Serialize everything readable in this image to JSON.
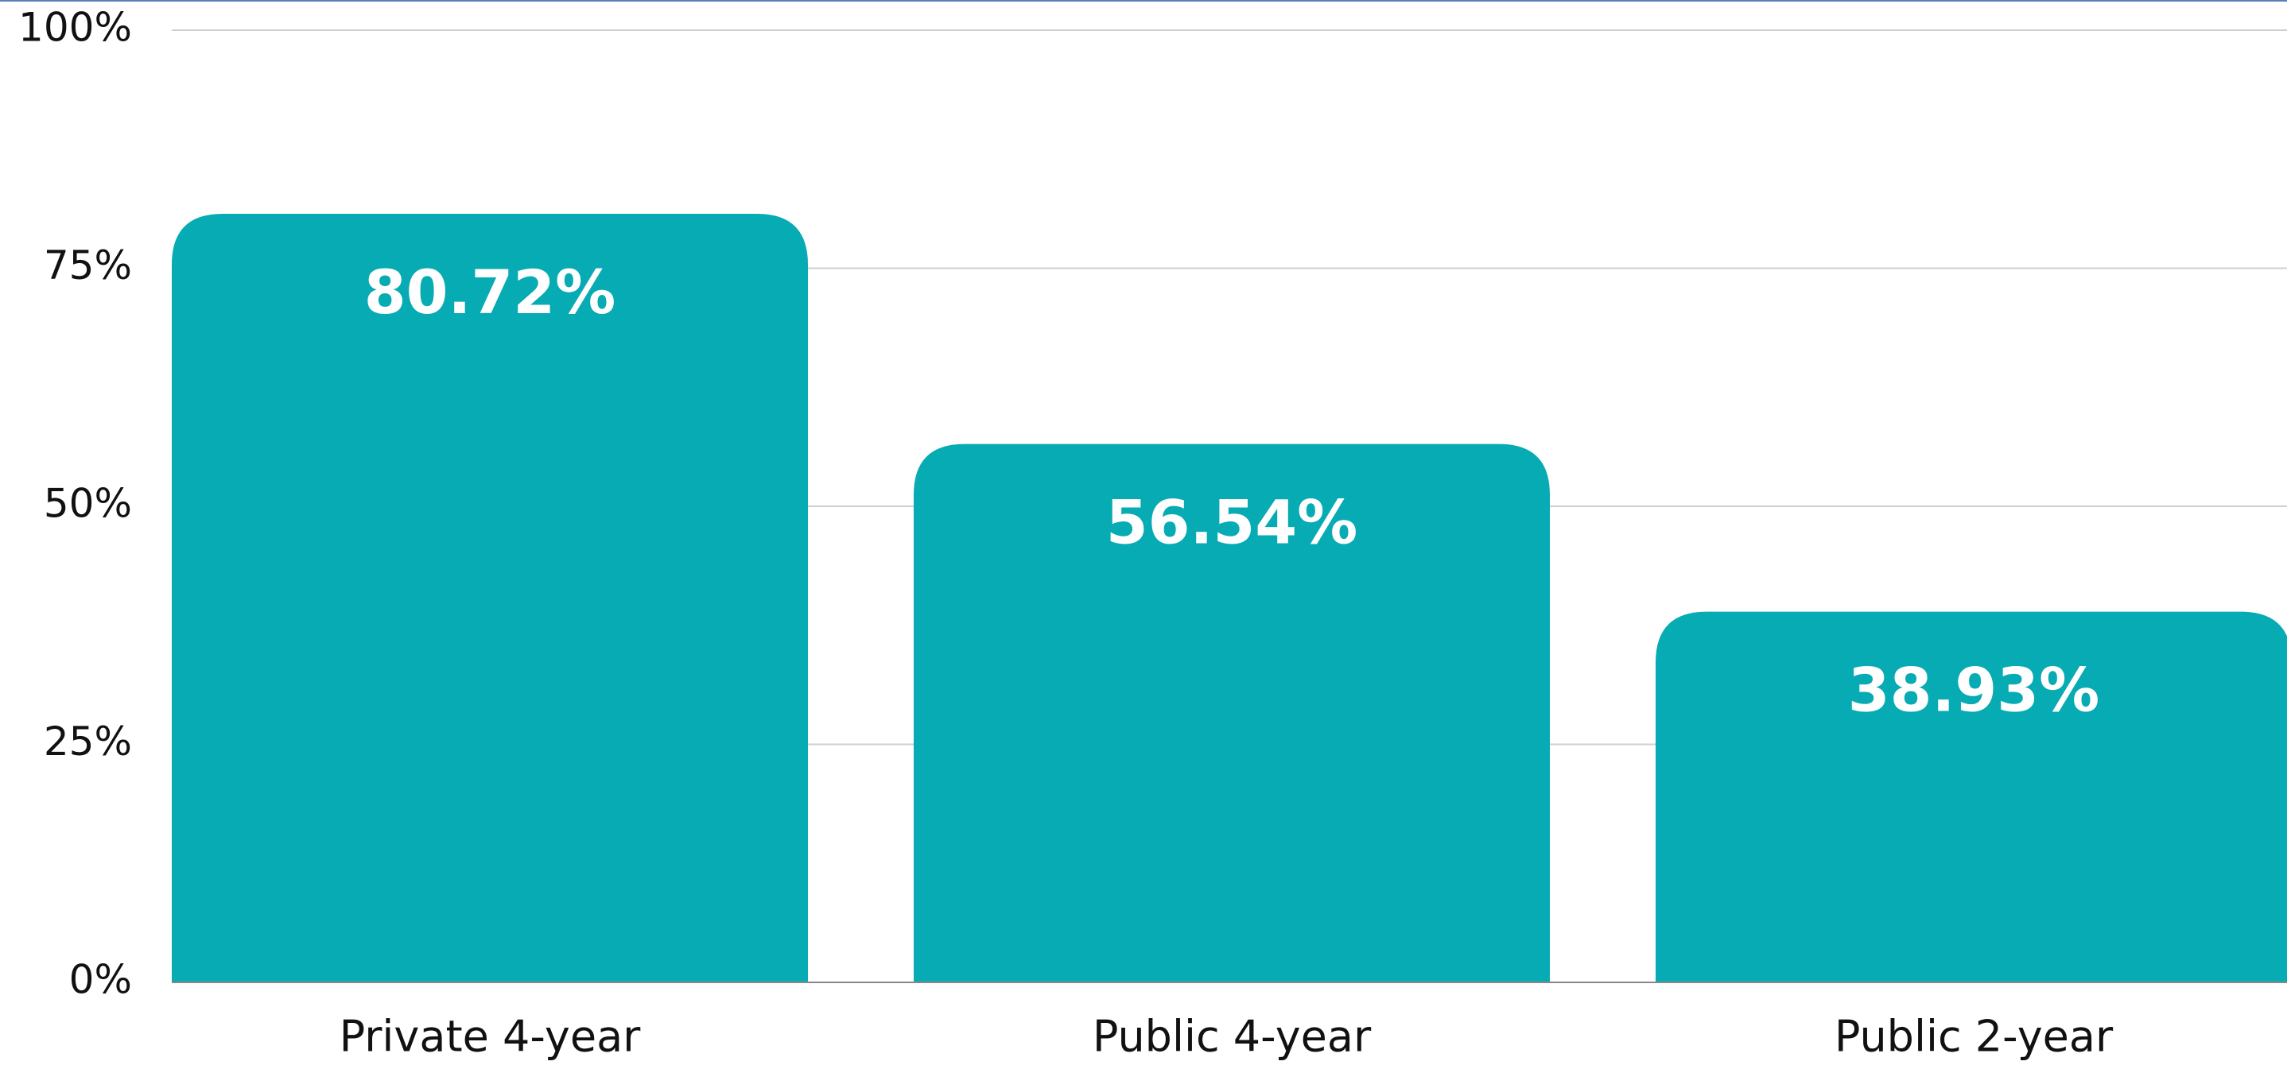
{
  "chart_data": {
    "type": "bar",
    "categories": [
      "Private 4-year",
      "Public 4-year",
      "Public 2-year"
    ],
    "values": [
      80.72,
      56.54,
      38.93
    ],
    "value_labels": [
      "80.72%",
      "56.54%",
      "38.93%"
    ],
    "color": "#07abb3",
    "ylim": [
      0,
      100
    ],
    "yticks": [
      {
        "value": 0,
        "label": "0%"
      },
      {
        "value": 25,
        "label": "25%"
      },
      {
        "value": 50,
        "label": "50%"
      },
      {
        "value": 75,
        "label": "75%"
      },
      {
        "value": 100,
        "label": "100%"
      }
    ],
    "grid": true
  }
}
